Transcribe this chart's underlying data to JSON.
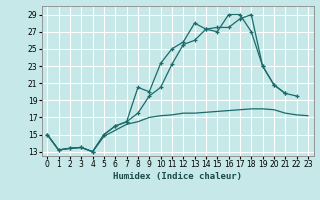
{
  "bg_color": "#c6e8e8",
  "grid_color": "#ffffff",
  "line_color": "#1a6b6b",
  "xlabel": "Humidex (Indice chaleur)",
  "xlim": [
    -0.5,
    23.5
  ],
  "ylim": [
    12.5,
    30.0
  ],
  "xticks": [
    0,
    1,
    2,
    3,
    4,
    5,
    6,
    7,
    8,
    9,
    10,
    11,
    12,
    13,
    14,
    15,
    16,
    17,
    18,
    19,
    20,
    21,
    22,
    23
  ],
  "yticks": [
    13,
    15,
    17,
    19,
    21,
    23,
    25,
    27,
    29
  ],
  "line1_x": [
    0,
    1,
    2,
    3,
    4,
    5,
    6,
    7,
    8,
    9,
    10,
    11,
    12,
    13,
    14,
    15,
    16,
    17,
    18,
    19,
    20,
    21,
    22,
    23
  ],
  "line1_y": [
    15.0,
    13.2,
    13.4,
    13.5,
    13.0,
    14.8,
    15.5,
    16.2,
    16.5,
    17.0,
    17.2,
    17.3,
    17.5,
    17.5,
    17.6,
    17.7,
    17.8,
    17.9,
    18.0,
    18.0,
    17.9,
    17.5,
    17.3,
    17.2
  ],
  "line2_x": [
    0,
    1,
    2,
    3,
    4,
    5,
    6,
    7,
    8,
    9,
    10,
    11,
    12,
    13,
    14,
    15,
    16,
    17,
    18,
    19,
    20,
    21,
    22
  ],
  "line2_y": [
    15.0,
    13.2,
    13.4,
    13.5,
    13.0,
    15.0,
    16.0,
    16.5,
    20.5,
    20.0,
    23.3,
    25.0,
    25.8,
    28.0,
    27.3,
    27.5,
    27.5,
    28.5,
    29.0,
    23.0,
    20.8,
    19.8,
    19.5
  ],
  "line3_x": [
    0,
    1,
    2,
    3,
    4,
    5,
    6,
    7,
    8,
    9,
    10,
    11,
    12,
    13,
    14,
    15,
    16,
    17,
    18,
    19,
    20,
    21
  ],
  "line3_y": [
    15.0,
    13.2,
    13.4,
    13.5,
    13.0,
    15.0,
    16.0,
    16.5,
    17.5,
    19.5,
    20.5,
    23.2,
    25.5,
    26.0,
    27.3,
    27.0,
    29.0,
    29.0,
    27.0,
    23.0,
    20.8,
    19.8
  ]
}
